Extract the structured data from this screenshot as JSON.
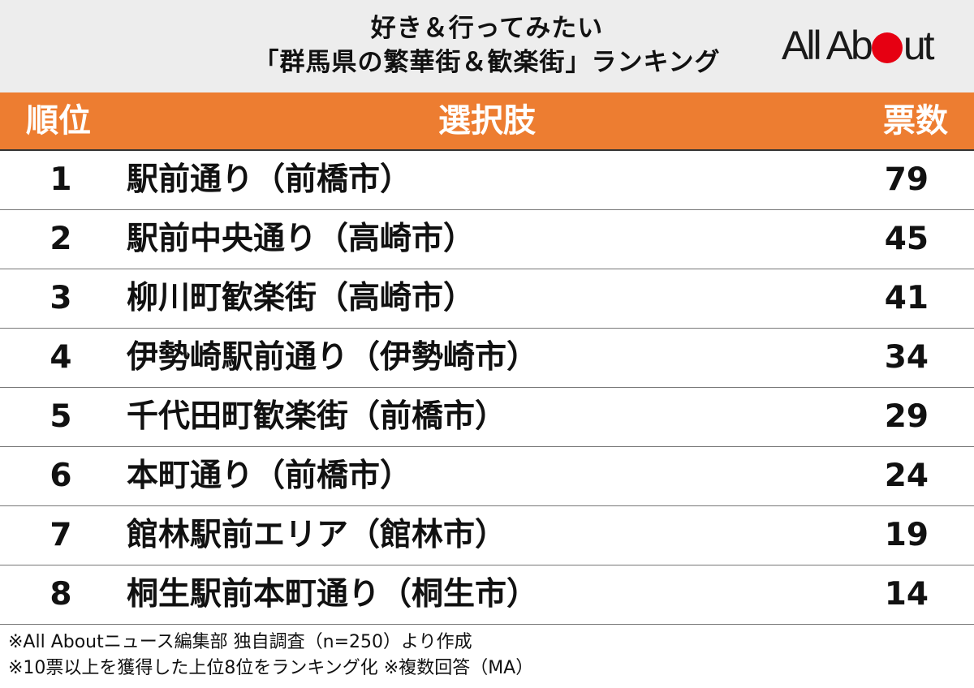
{
  "header": {
    "title_line1": "好き＆行ってみたい",
    "title_line2": "「群馬県の繁華街＆歓楽街」ランキング",
    "logo_text_left": "All Ab",
    "logo_text_right": "ut",
    "logo_dot_color": "#e60012"
  },
  "table": {
    "header_color": "#ed7d31",
    "columns": [
      "順位",
      "選択肢",
      "票数"
    ],
    "rows": [
      {
        "rank": "1",
        "choice": "駅前通り（前橋市）",
        "votes": "79"
      },
      {
        "rank": "2",
        "choice": "駅前中央通り（高崎市）",
        "votes": "45"
      },
      {
        "rank": "3",
        "choice": "柳川町歓楽街（高崎市）",
        "votes": "41"
      },
      {
        "rank": "4",
        "choice": "伊勢崎駅前通り（伊勢崎市）",
        "votes": "34"
      },
      {
        "rank": "5",
        "choice": "千代田町歓楽街（前橋市）",
        "votes": "29"
      },
      {
        "rank": "6",
        "choice": "本町通り（前橋市）",
        "votes": "24"
      },
      {
        "rank": "7",
        "choice": "館林駅前エリア（館林市）",
        "votes": "19"
      },
      {
        "rank": "8",
        "choice": "桐生駅前本町通り（桐生市）",
        "votes": "14"
      }
    ]
  },
  "notes": [
    "※All Aboutニュース編集部 独自調査（n=250）より作成",
    "※10票以上を獲得した上位8位をランキング化 ※複数回答（MA）"
  ]
}
